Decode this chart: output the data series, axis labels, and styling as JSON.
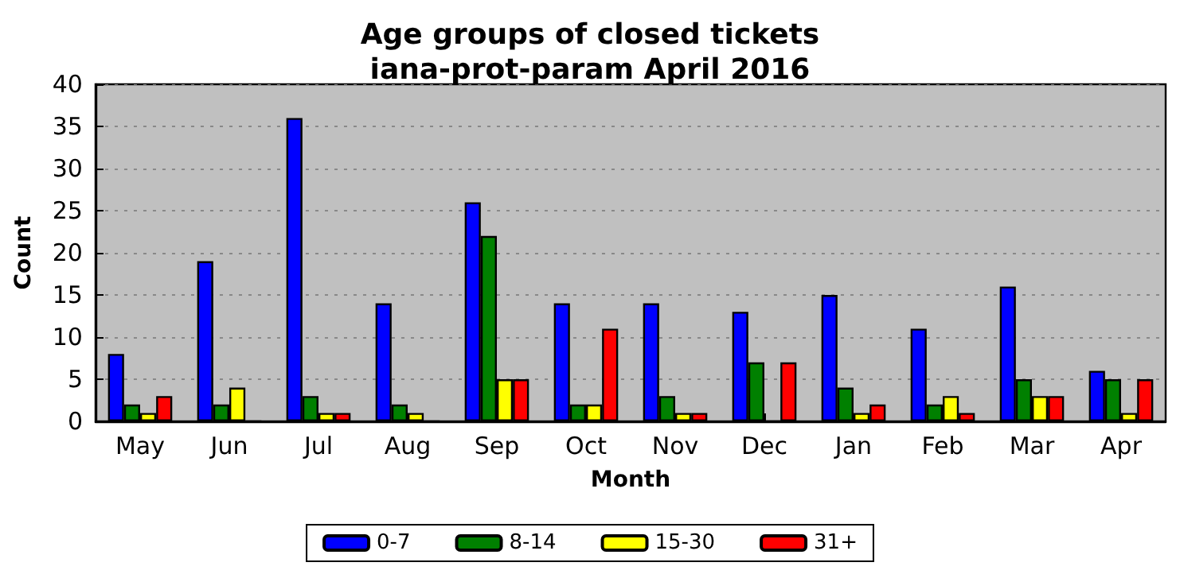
{
  "chart_data": {
    "type": "bar",
    "title": "Age groups of closed tickets\niana-prot-param April 2016",
    "xlabel": "Month",
    "ylabel": "Count",
    "categories": [
      "May",
      "Jun",
      "Jul",
      "Aug",
      "Sep",
      "Oct",
      "Nov",
      "Dec",
      "Jan",
      "Feb",
      "Mar",
      "Apr"
    ],
    "series": [
      {
        "name": "0-7",
        "color": "#0000ff",
        "values": [
          8,
          19,
          36,
          14,
          26,
          14,
          14,
          13,
          15,
          11,
          16,
          6
        ]
      },
      {
        "name": "8-14",
        "color": "#008000",
        "values": [
          2,
          2,
          3,
          2,
          22,
          2,
          3,
          7,
          4,
          2,
          5,
          5
        ]
      },
      {
        "name": "15-30",
        "color": "#ffff00",
        "values": [
          1,
          4,
          1,
          1,
          5,
          2,
          1,
          0,
          1,
          3,
          3,
          1
        ]
      },
      {
        "name": "31+",
        "color": "#ff0000",
        "values": [
          3,
          0,
          1,
          0,
          5,
          11,
          1,
          7,
          2,
          1,
          3,
          5
        ]
      }
    ],
    "ylim": [
      0,
      40
    ],
    "yticks": [
      0,
      5,
      10,
      15,
      20,
      25,
      30,
      35,
      40
    ],
    "grid": "y",
    "legend": "bottom"
  }
}
